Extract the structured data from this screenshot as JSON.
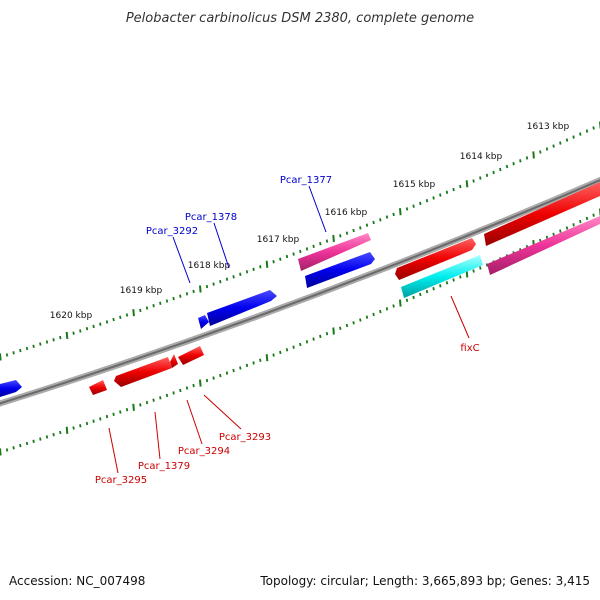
{
  "title": "Pelobacter carbinolicus DSM 2380, complete genome",
  "footer": {
    "accession": "Accession: NC_007498",
    "summary": "Topology: circular; Length: 3,665,893 bp; Genes: 3,415"
  },
  "colors": {
    "backbone": "#888888",
    "ticks": "#1a7a1a",
    "blue": "#0000ee",
    "red": "#ee0000",
    "magenta": "#ee3399",
    "cyan": "#00eeee",
    "label_blue": "#0000cc",
    "label_red": "#cc0000"
  },
  "scale_labels": [
    "1613 kbp",
    "1614 kbp",
    "1615 kbp",
    "1616 kbp",
    "1617 kbp",
    "1618 kbp",
    "1619 kbp",
    "1620 kbp"
  ],
  "gene_labels": {
    "pcar_1377": "Pcar_1377",
    "pcar_1378": "Pcar_1378",
    "pcar_3292": "Pcar_3292",
    "fixc": "fixC",
    "pcar_3293": "Pcar_3293",
    "pcar_3294": "Pcar_3294",
    "pcar_1379": "Pcar_1379",
    "pcar_3295": "Pcar_3295"
  }
}
